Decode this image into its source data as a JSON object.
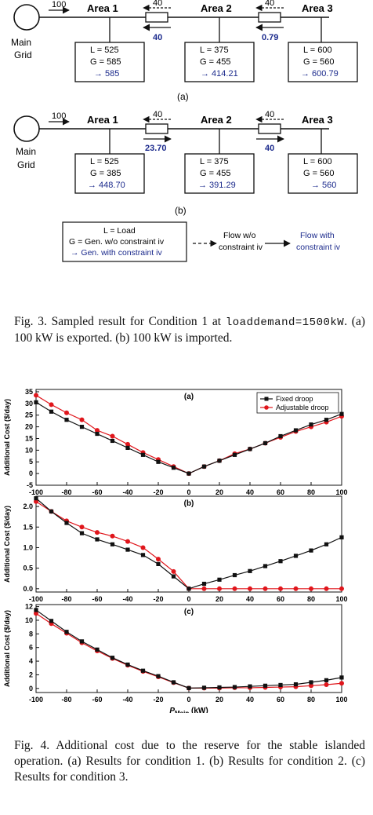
{
  "diagrams": [
    {
      "panel": "(a)",
      "main_grid_label": [
        "Main",
        "Grid"
      ],
      "grid_flow": "100",
      "areas": [
        {
          "name": "Area 1",
          "load": "L = 525",
          "gen": "G = 585",
          "gen_iv": "→ 585"
        },
        {
          "name": "Area 2",
          "load": "L = 375",
          "gen": "G = 455",
          "gen_iv": "→ 414.21"
        },
        {
          "name": "Area 3",
          "load": "L = 600",
          "gen": "G = 560",
          "gen_iv": "→ 600.79"
        }
      ],
      "links": [
        {
          "flow_wo": "40",
          "flow_with": "40"
        },
        {
          "flow_wo": "40",
          "flow_with": "0.79"
        }
      ]
    },
    {
      "panel": "(b)",
      "main_grid_label": [
        "Main",
        "Grid"
      ],
      "grid_flow": "100",
      "areas": [
        {
          "name": "Area 1",
          "load": "L = 525",
          "gen": "G = 385",
          "gen_iv": "→ 448.70"
        },
        {
          "name": "Area 2",
          "load": "L = 375",
          "gen": "G = 455",
          "gen_iv": "→ 391.29"
        },
        {
          "name": "Area 3",
          "load": "L = 600",
          "gen": "G = 560",
          "gen_iv": "→ 560"
        }
      ],
      "links": [
        {
          "flow_wo": "40",
          "flow_with": "23.70"
        },
        {
          "flow_wo": "40",
          "flow_with": "40"
        }
      ]
    }
  ],
  "legend": {
    "box_lines": [
      "L = Load",
      "G = Gen. w/o constraint iv",
      "→ Gen. with constraint iv"
    ],
    "dashed_label": [
      "Flow w/o",
      "constraint iv"
    ],
    "solid_label": [
      "Flow with",
      "constraint iv"
    ]
  },
  "fig3_caption": {
    "before": "Fig. 3. Sampled result for Condition 1 at ",
    "mono": "loaddemand=1500kW",
    "after": ". (a) 100 kW is exported. (b) 100 kW is imported."
  },
  "fig4_caption": "Fig. 4. Additional cost due to the reserve for the stable islanded operation. (a) Results for condition 1. (b) Results for condition 2. (c) Results for condition 3.",
  "colors": {
    "fixed": "#111111",
    "adjustable": "#e0161c",
    "blue_text": "#1b2a8c"
  },
  "chart_data": [
    {
      "type": "line",
      "panel": "(a)",
      "ylabel": "Additional Cost ($/day)",
      "xlabel": "",
      "x": [
        -100,
        -90,
        -80,
        -70,
        -60,
        -50,
        -40,
        -30,
        -20,
        -10,
        0,
        10,
        20,
        30,
        40,
        50,
        60,
        70,
        80,
        90,
        100
      ],
      "xticks": [
        "-100",
        "-80",
        "-60",
        "-40",
        "-20",
        "0",
        "20",
        "40",
        "60",
        "80",
        "100"
      ],
      "yticks": [
        "-5",
        "0",
        "5",
        "10",
        "15",
        "20",
        "25",
        "30",
        "35"
      ],
      "ylim": [
        -5,
        36
      ],
      "legend_placement": "top-right",
      "series": [
        {
          "name": "Fixed droop",
          "marker": "square",
          "values": [
            30.5,
            26.5,
            23,
            20,
            17,
            14,
            11,
            8,
            5,
            2.5,
            0,
            3,
            5.5,
            8,
            10.5,
            13,
            16,
            18.5,
            21,
            23,
            25.5
          ]
        },
        {
          "name": "Adjustable droop",
          "marker": "circle",
          "values": [
            33.5,
            29.5,
            26,
            23,
            18.5,
            16,
            12.5,
            9,
            6,
            3,
            0,
            3,
            5.5,
            8.5,
            10.5,
            13,
            15.5,
            18,
            20,
            22,
            24.5
          ]
        }
      ]
    },
    {
      "type": "line",
      "panel": "(b)",
      "ylabel": "Additional Cost ($/day)",
      "xlabel": "",
      "x": [
        -100,
        -90,
        -80,
        -70,
        -60,
        -50,
        -40,
        -30,
        -20,
        -10,
        0,
        10,
        20,
        30,
        40,
        50,
        60,
        70,
        80,
        90,
        100
      ],
      "xticks": [
        "-100",
        "-80",
        "-60",
        "-40",
        "-20",
        "0",
        "20",
        "40",
        "60",
        "80",
        "100"
      ],
      "yticks": [
        "0.0",
        "0.5",
        "1.0",
        "1.5",
        "2.0"
      ],
      "ylim": [
        -0.08,
        2.25
      ],
      "series": [
        {
          "name": "Fixed droop",
          "marker": "square",
          "values": [
            2.2,
            1.88,
            1.6,
            1.35,
            1.2,
            1.08,
            0.95,
            0.82,
            0.6,
            0.3,
            0,
            0.12,
            0.22,
            0.33,
            0.43,
            0.55,
            0.67,
            0.8,
            0.93,
            1.08,
            1.25
          ]
        },
        {
          "name": "Adjustable droop",
          "marker": "circle",
          "values": [
            2.12,
            1.88,
            1.65,
            1.5,
            1.37,
            1.28,
            1.15,
            1.0,
            0.72,
            0.42,
            0,
            0,
            0,
            0,
            0,
            0,
            0,
            0,
            0,
            0,
            0
          ]
        }
      ]
    },
    {
      "type": "line",
      "panel": "(c)",
      "ylabel": "Additional Cost ($/day)",
      "xlabel": "P_Main (kW)",
      "x": [
        -100,
        -90,
        -80,
        -70,
        -60,
        -50,
        -40,
        -30,
        -20,
        -10,
        0,
        10,
        20,
        30,
        40,
        50,
        60,
        70,
        80,
        90,
        100
      ],
      "xticks": [
        "-100",
        "-80",
        "-60",
        "-40",
        "-20",
        "0",
        "20",
        "40",
        "60",
        "80",
        "100"
      ],
      "yticks": [
        "0",
        "2",
        "4",
        "6",
        "8",
        "10",
        "12"
      ],
      "ylim": [
        -0.6,
        12.3
      ],
      "series": [
        {
          "name": "Fixed droop",
          "marker": "square",
          "values": [
            11.5,
            9.9,
            8.3,
            6.9,
            5.7,
            4.5,
            3.5,
            2.6,
            1.8,
            0.9,
            0.05,
            0.1,
            0.15,
            0.2,
            0.3,
            0.4,
            0.5,
            0.6,
            0.9,
            1.2,
            1.6
          ]
        },
        {
          "name": "Adjustable droop",
          "marker": "circle",
          "values": [
            11.0,
            9.5,
            8.1,
            6.7,
            5.5,
            4.4,
            3.4,
            2.5,
            1.7,
            0.85,
            0.05,
            0.05,
            0.05,
            0.1,
            0.1,
            0.15,
            0.2,
            0.25,
            0.4,
            0.55,
            0.75
          ]
        }
      ]
    }
  ]
}
